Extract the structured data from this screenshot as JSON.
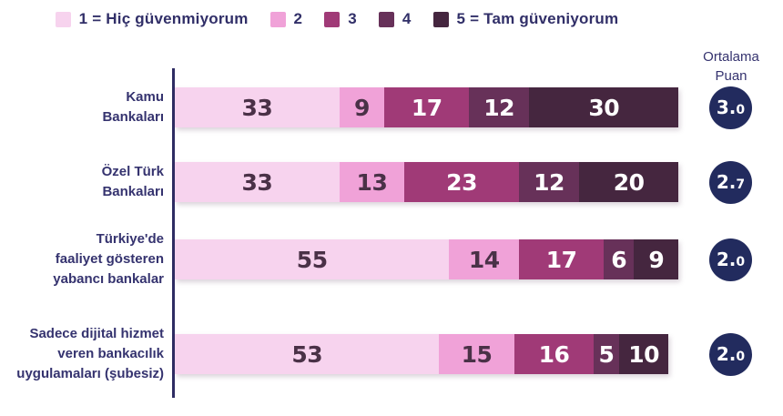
{
  "avg_column": {
    "header": "Ortalama\nPuan",
    "circle_color": "#222b5e",
    "values": [
      "3.0",
      "2.7",
      "2.0",
      "2.0"
    ]
  },
  "chart_data": {
    "type": "bar",
    "orientation": "horizontal-stacked",
    "title": "",
    "xlabel": "",
    "ylabel": "",
    "xlim": [
      0,
      101
    ],
    "grid": false,
    "legend_position": "top",
    "avg_header": "Ortalama\nPuan",
    "categories": [
      "Kamu\nBankaları",
      "Özel Türk\nBankaları",
      "Türkiye'de\nfaaliyet gösteren\nyabancı bankalar",
      "Sadece dijital hizmet\nveren bankacılık\nuygulamaları (şubesiz)"
    ],
    "series": [
      {
        "name": "1 = Hiç güvenmiyorum",
        "color": "#f7d3ee",
        "text_color": "#4a3147",
        "values": [
          33,
          33,
          55,
          53
        ]
      },
      {
        "name": "2",
        "color": "#f0a2d8",
        "text_color": "#4a3147",
        "values": [
          9,
          13,
          14,
          15
        ]
      },
      {
        "name": "3",
        "color": "#a03a77",
        "text_color": "#ffffff",
        "values": [
          17,
          23,
          17,
          16
        ]
      },
      {
        "name": "4",
        "color": "#673159",
        "text_color": "#ffffff",
        "values": [
          12,
          12,
          6,
          5
        ]
      },
      {
        "name": "5 = Tam güveniyorum",
        "color": "#45263f",
        "text_color": "#ffffff",
        "values": [
          30,
          20,
          9,
          10
        ]
      }
    ],
    "averages": [
      "3.0",
      "2.7",
      "2.0",
      "2.0"
    ],
    "axis_color": "#2e2c63",
    "label_color": "#35336f",
    "avg_circle_color": "#222b5e"
  }
}
